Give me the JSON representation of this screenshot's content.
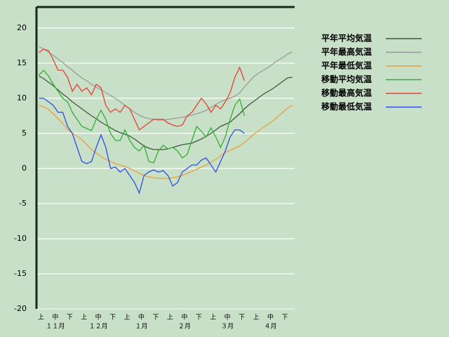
{
  "chart_data": {
    "type": "line",
    "categories": [
      "上",
      null,
      null,
      "中",
      null,
      null,
      "下",
      null,
      null,
      "上",
      null,
      null,
      "中",
      null,
      null,
      "下",
      null,
      null,
      "上",
      null,
      null,
      "中",
      null,
      null,
      "下",
      null,
      null,
      "上",
      null,
      null,
      "中",
      null,
      null,
      "下",
      null,
      null,
      "上",
      null,
      null,
      "中",
      null,
      null,
      "下",
      null,
      null,
      "上",
      null,
      null,
      "中",
      null,
      null,
      "下",
      null,
      null
    ],
    "months": [
      "１１月",
      "１２月",
      "１月",
      "２月",
      "３月",
      "４月"
    ],
    "ylim": [
      -20,
      23
    ],
    "yticks": [
      -20,
      -15,
      -10,
      -5,
      0,
      5,
      10,
      15,
      20
    ],
    "grid": true,
    "series": [
      {
        "name": "平年平均気温",
        "color": "#3d5a3d",
        "values": [
          13.2,
          12.8,
          12.3,
          11.8,
          11.2,
          10.6,
          10.1,
          9.5,
          9,
          8.5,
          8,
          7.5,
          7.1,
          6.6,
          6.2,
          5.8,
          5.4,
          5.1,
          4.9,
          4.6,
          4.2,
          3.7,
          3.2,
          2.9,
          2.7,
          2.7,
          2.7,
          2.8,
          3,
          3.2,
          3.4,
          3.5,
          3.6,
          3.9,
          4.2,
          4.6,
          5,
          5.5,
          6,
          6.3,
          6.6,
          7.2,
          7.8,
          8.5,
          9.1,
          9.6,
          10.1,
          10.6,
          11,
          11.4,
          11.9,
          12.4,
          12.9,
          13
        ]
      },
      {
        "name": "平年最高気温",
        "color": "#9a9a9a",
        "values": [
          17.4,
          17,
          16.6,
          16.1,
          15.6,
          15.1,
          14.5,
          14,
          13.4,
          12.9,
          12.5,
          12,
          11.6,
          11.2,
          10.8,
          10.4,
          10,
          9.5,
          9,
          8.5,
          8,
          7.6,
          7.3,
          7.1,
          7,
          6.9,
          6.9,
          7,
          7.1,
          7.2,
          7.3,
          7.4,
          7.6,
          7.8,
          8,
          8.3,
          8.7,
          9.1,
          9.5,
          9.8,
          10,
          10.3,
          10.8,
          11.6,
          12.4,
          13.1,
          13.6,
          14,
          14.4,
          14.9,
          15.4,
          15.8,
          16.3,
          16.6
        ]
      },
      {
        "name": "平年最低気温",
        "color": "#e8a040",
        "values": [
          9,
          8.8,
          8.4,
          7.8,
          7.1,
          6.4,
          5.6,
          5,
          4.6,
          4.1,
          3.4,
          2.7,
          2.2,
          1.7,
          1.3,
          1,
          0.7,
          0.5,
          0.3,
          0,
          -0.3,
          -0.7,
          -1,
          -1.2,
          -1.3,
          -1.4,
          -1.4,
          -1.4,
          -1.3,
          -1.2,
          -1,
          -0.7,
          -0.4,
          -0.1,
          0.2,
          0.5,
          0.9,
          1.3,
          1.8,
          2.3,
          2.6,
          2.9,
          3.2,
          3.7,
          4.3,
          4.9,
          5.4,
          5.9,
          6.3,
          6.8,
          7.4,
          8,
          8.6,
          9
        ]
      },
      {
        "name": "移動平均気温",
        "color": "#30b030",
        "values": [
          13.3,
          14,
          13.2,
          12,
          11,
          10,
          9.5,
          8,
          7,
          6,
          5.7,
          5.4,
          7,
          8.3,
          7,
          5,
          4,
          4,
          5.5,
          4,
          3,
          2.5,
          3.3,
          1,
          0.8,
          2.5,
          3.3,
          2.8,
          3,
          2.5,
          1.5,
          2,
          4,
          6,
          5.3,
          4.5,
          5.8,
          4.5,
          3,
          4.5,
          7,
          9,
          9.9,
          7.5,
          null,
          null,
          null,
          null,
          null,
          null,
          null,
          null,
          null,
          null
        ]
      },
      {
        "name": "移動最高気温",
        "color": "#e84030",
        "values": [
          16.5,
          17,
          16.8,
          15.5,
          14,
          14,
          13,
          11,
          12,
          11,
          11.5,
          10.5,
          12,
          11.5,
          9,
          8,
          8.5,
          8,
          9,
          8.5,
          7,
          5.5,
          6,
          6.5,
          7,
          7,
          7,
          6.5,
          6.2,
          6,
          6.2,
          7.5,
          8,
          9,
          10,
          9.2,
          8,
          9,
          8.5,
          9.5,
          10.8,
          13,
          14.4,
          12.5,
          null,
          null,
          null,
          null,
          null,
          null,
          null,
          null,
          null,
          null
        ]
      },
      {
        "name": "移動最低気温",
        "color": "#3050e0",
        "values": [
          10,
          10,
          9.5,
          9,
          8,
          8,
          6,
          5,
          3,
          1,
          0.7,
          1,
          3,
          4.8,
          3,
          0,
          0.2,
          -0.5,
          0,
          -1,
          -2,
          -3.5,
          -1,
          -0.5,
          -0.2,
          -0.5,
          -0.3,
          -1,
          -2.5,
          -2,
          -0.5,
          0,
          0.5,
          0.5,
          1.2,
          1.5,
          0.5,
          -0.5,
          1,
          2.5,
          4.5,
          5.5,
          5.5,
          5,
          null,
          null,
          null,
          null,
          null,
          null,
          null,
          null,
          null,
          null
        ]
      }
    ]
  }
}
